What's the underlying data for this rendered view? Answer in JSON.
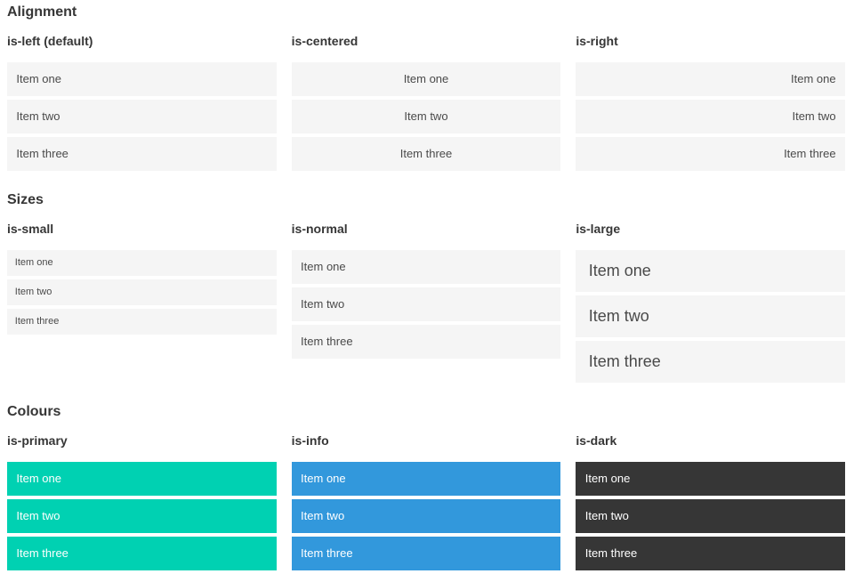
{
  "colors": {
    "primary": "#00d1b2",
    "info": "#3298dc",
    "dark": "#363636",
    "item_background": "#f5f5f5",
    "heading_text": "#363636",
    "item_text": "#4a4a4a",
    "colour_item_text": "#ffffff"
  },
  "sections": [
    {
      "title": "Alignment",
      "columns": [
        {
          "heading": "is-left (default)",
          "items": [
            "Item one",
            "Item two",
            "Item three"
          ]
        },
        {
          "heading": "is-centered",
          "items": [
            "Item one",
            "Item two",
            "Item three"
          ]
        },
        {
          "heading": "is-right",
          "items": [
            "Item one",
            "Item two",
            "Item three"
          ]
        }
      ]
    },
    {
      "title": "Sizes",
      "columns": [
        {
          "heading": "is-small",
          "items": [
            "Item one",
            "Item two",
            "Item three"
          ]
        },
        {
          "heading": "is-normal",
          "items": [
            "Item one",
            "Item two",
            "Item three"
          ]
        },
        {
          "heading": "is-large",
          "items": [
            "Item one",
            "Item two",
            "Item three"
          ]
        }
      ]
    },
    {
      "title": "Colours",
      "columns": [
        {
          "heading": "is-primary",
          "items": [
            "Item one",
            "Item two",
            "Item three"
          ]
        },
        {
          "heading": "is-info",
          "items": [
            "Item one",
            "Item two",
            "Item three"
          ]
        },
        {
          "heading": "is-dark",
          "items": [
            "Item one",
            "Item two",
            "Item three"
          ]
        }
      ]
    }
  ]
}
